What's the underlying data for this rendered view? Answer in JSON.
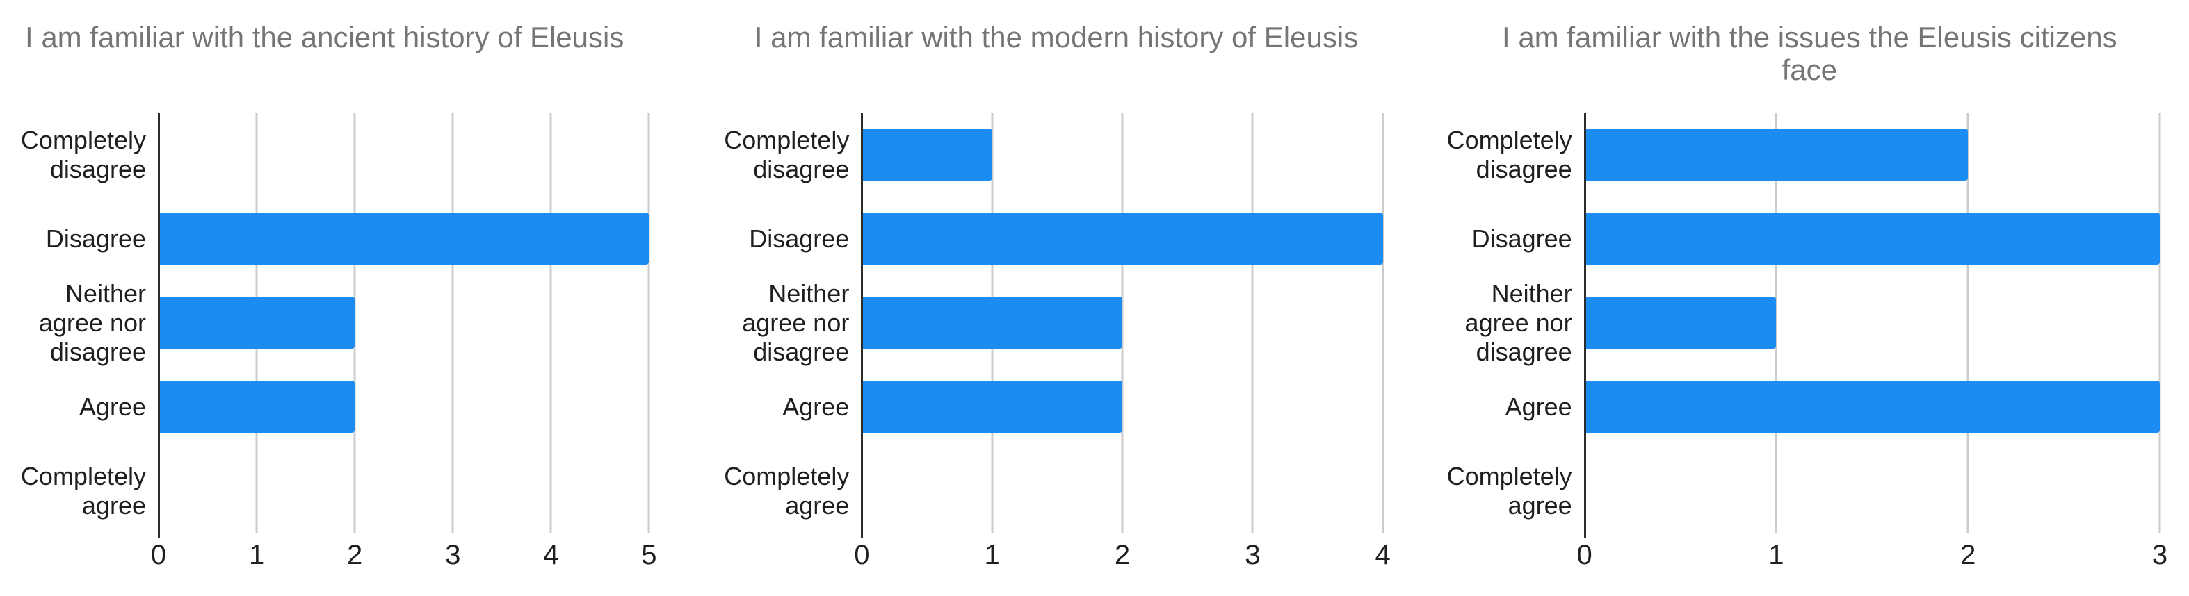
{
  "figure": {
    "background": "#ffffff",
    "bar_color": "#1a8cf2",
    "title_color": "#757575",
    "axis_color": "#2b2b2b",
    "gridline_color": "#cccccc",
    "label_color": "#1f1f1f"
  },
  "chart_data": [
    {
      "type": "bar",
      "orientation": "horizontal",
      "title": "I am familiar with the ancient history of Eleusis",
      "categories": [
        "Completely disagree",
        "Disagree",
        "Neither agree nor disagree",
        "Agree",
        "Completely agree"
      ],
      "values": [
        0,
        5,
        2,
        2,
        0
      ],
      "xlabel": "",
      "ylabel": "",
      "xlim": [
        0,
        5
      ],
      "xticks": [
        0,
        1,
        2,
        3,
        4,
        5
      ],
      "grid": true,
      "legend": "none"
    },
    {
      "type": "bar",
      "orientation": "horizontal",
      "title": "I am familiar with the modern history of Eleusis",
      "categories": [
        "Completely disagree",
        "Disagree",
        "Neither agree nor disagree",
        "Agree",
        "Completely agree"
      ],
      "values": [
        1,
        4,
        2,
        2,
        0
      ],
      "xlabel": "",
      "ylabel": "",
      "xlim": [
        0,
        4
      ],
      "xticks": [
        0,
        1,
        2,
        3,
        4
      ],
      "grid": true,
      "legend": "none"
    },
    {
      "type": "bar",
      "orientation": "horizontal",
      "title": "I am familiar with the issues the Eleusis citizens face",
      "categories": [
        "Completely disagree",
        "Disagree",
        "Neither agree nor disagree",
        "Agree",
        "Completely agree"
      ],
      "values": [
        2,
        3,
        1,
        3,
        0
      ],
      "xlabel": "",
      "ylabel": "",
      "xlim": [
        0,
        3
      ],
      "xticks": [
        0,
        1,
        2,
        3
      ],
      "grid": true,
      "legend": "none"
    }
  ]
}
